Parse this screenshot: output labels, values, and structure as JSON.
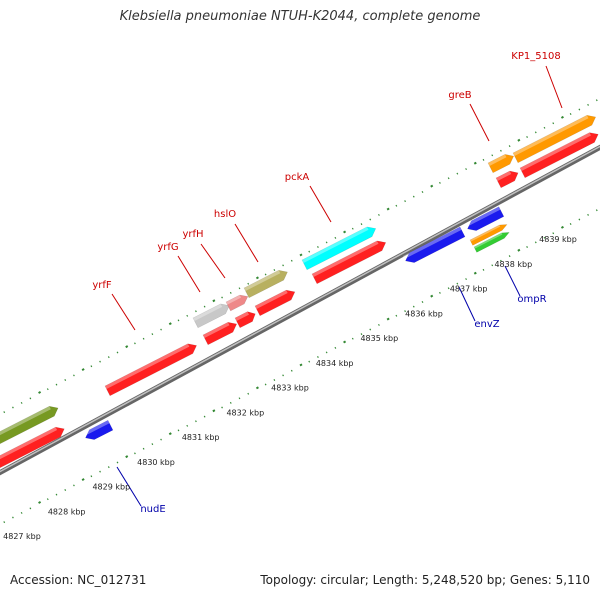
{
  "title": "Klebsiella pneumoniae NTUH-K2044, complete genome",
  "accession": "Accession: NC_012731",
  "summary": "Topology: circular; Length: 5,248,520 bp; Genes: 5,110",
  "scale_labels": [
    "4827 kbp",
    "4828 kbp",
    "4829 kbp",
    "4830 kbp",
    "4831 kbp",
    "4832 kbp",
    "4833 kbp",
    "4834 kbp",
    "4835 kbp",
    "4836 kbp",
    "4837 kbp",
    "4838 kbp",
    "4839 kbp"
  ],
  "genes_top": [
    "KP1_5108",
    "greB",
    "pckA",
    "hslO",
    "yrfH",
    "yrfG",
    "yrfF"
  ],
  "genes_bottom": [
    "ompR",
    "envZ",
    "nudE"
  ],
  "colors": {
    "label_top": "#cc0000",
    "label_bottom": "#0000aa",
    "tick": "#338833",
    "backbone": "#888888",
    "gene_red": "#ff2020",
    "gene_orange": "#ff9900",
    "gene_cyan": "#00ffff",
    "gene_blue": "#1a1aee",
    "gene_olive": "#779922",
    "gene_khaki": "#b8b060",
    "gene_grey": "#c8c8c8",
    "gene_pink": "#ee8888",
    "gene_green": "#33cc33"
  }
}
